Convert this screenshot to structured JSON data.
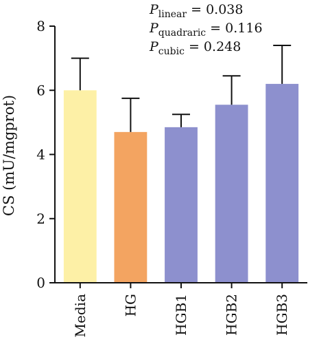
{
  "chart_data": {
    "type": "bar",
    "title": "",
    "xlabel": "",
    "ylabel": "CS (mU/mgprot)",
    "ylim": [
      0,
      8
    ],
    "yticks": [
      0,
      2,
      4,
      6,
      8
    ],
    "grid": false,
    "categories": [
      "Media",
      "HG",
      "HGB1",
      "HGB2",
      "HGB3"
    ],
    "values": [
      6.0,
      4.7,
      4.85,
      5.55,
      6.2
    ],
    "errors": [
      1.0,
      1.05,
      0.4,
      0.9,
      1.2
    ],
    "colors": [
      "#fdf0a6",
      "#f3a461",
      "#8d90ce",
      "#8d90ce",
      "#8d90ce"
    ],
    "annotations": [
      {
        "symbol": "P",
        "subscript": "linear",
        "text": " = 0.038"
      },
      {
        "symbol": "P",
        "subscript": "quadraric",
        "text": " = 0.116"
      },
      {
        "symbol": "P",
        "subscript": "cubic",
        "text": " = 0.248"
      }
    ]
  }
}
